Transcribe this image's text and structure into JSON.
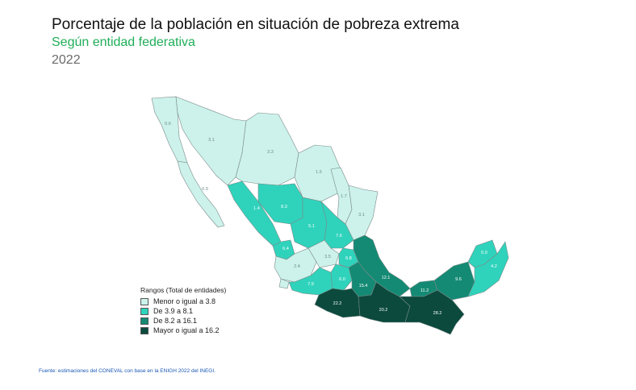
{
  "header": {
    "title": "Porcentaje de la población en situación de pobreza extrema",
    "subtitle": "Según entidad federativa",
    "year": "2022"
  },
  "colors": {
    "subtitle": "#1fae58",
    "range_1": "#ccf2eb",
    "range_2": "#2fd3bc",
    "range_3": "#148a74",
    "range_4": "#0b4a3d"
  },
  "legend": {
    "title": "Rangos   (Total de entidades)",
    "items": [
      {
        "label": "Menor o igual a 3.8",
        "color": "#ccf2eb"
      },
      {
        "label": "De 3.9 a 8.1",
        "color": "#2fd3bc"
      },
      {
        "label": "De 8.2 a 16.1",
        "color": "#148a74"
      },
      {
        "label": "Mayor o igual a 16.2",
        "color": "#0b4a3d"
      }
    ]
  },
  "map_labels": {
    "guerrero": "22.2",
    "oaxaca": "20.2",
    "chiapas": "28.2",
    "tabasco": "11.2",
    "campeche": "9.6",
    "yucatan": "5.0",
    "quintana_roo": "4.2",
    "veracruz": "12.1",
    "puebla": "15.4",
    "hidalgo": "6.8",
    "zacatecas": "5.1",
    "durango": "8.3",
    "sinaloa": "6.4",
    "san_luis_potosi": "7.6",
    "michoacan": "7.9",
    "mexico": "6.0"
  },
  "source": "Fuente: estimaciones del CONEVAL con base en la ENIGH 2022 del INEGI."
}
